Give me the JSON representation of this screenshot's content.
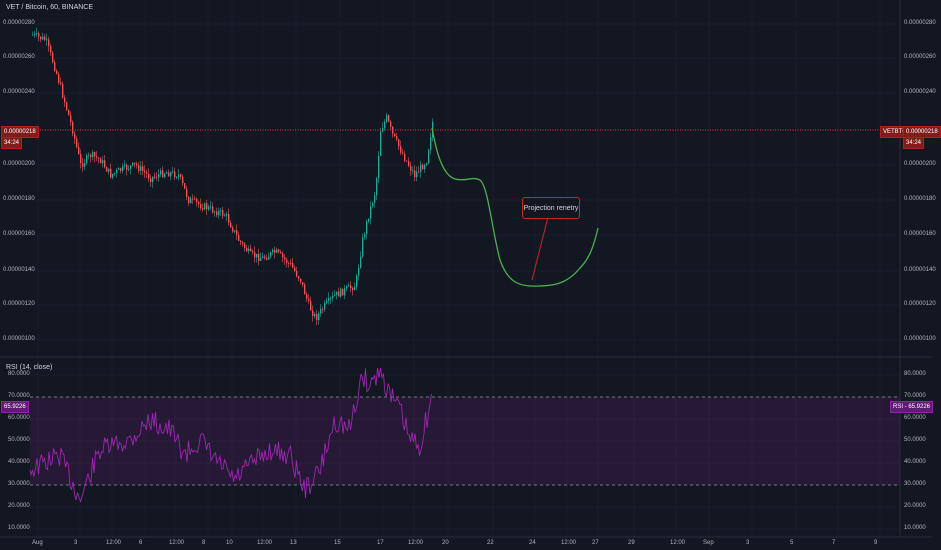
{
  "header": {
    "title": "VET / Bitcoin, 60, BINANCE"
  },
  "rsi": {
    "title": "RSI (14, close)",
    "value_tag": "65.9226",
    "value_tag_right": "RSI - 65.9226",
    "upper_band": 70,
    "lower_band": 30,
    "scale": [
      "80.0000",
      "70.0000",
      "60.0000",
      "50.0000",
      "40.0000",
      "30.0000",
      "20.0000",
      "10.0000"
    ],
    "color": "#9c27b0"
  },
  "price_axis": {
    "ticks": [
      "0.00000280",
      "0.00000260",
      "0.00000240",
      "0.00000200",
      "0.00000180",
      "0.00000160",
      "0.00000140",
      "0.00000120",
      "0.00000100"
    ],
    "current_price": "0.00000218",
    "countdown": "34:24",
    "symbol_tag": "VETBTC",
    "symbol_tag_price": "0.00000218"
  },
  "time_axis": [
    "Aug",
    "3",
    "12:00",
    "6",
    "12:00",
    "8",
    "10",
    "12:00",
    "13",
    "15",
    "17",
    "12:00",
    "20",
    "22",
    "24",
    "12:00",
    "27",
    "29",
    "12:00",
    "Sep",
    "3",
    "5",
    "7",
    "9"
  ],
  "annotation": {
    "text": "Projection renetry",
    "color": "#c62828",
    "projection_color": "#4caf50"
  },
  "colors": {
    "up": "#26a69a",
    "down": "#ef5350",
    "background": "#131722",
    "grid": "#1e2230",
    "price_line": "#e53935"
  }
}
